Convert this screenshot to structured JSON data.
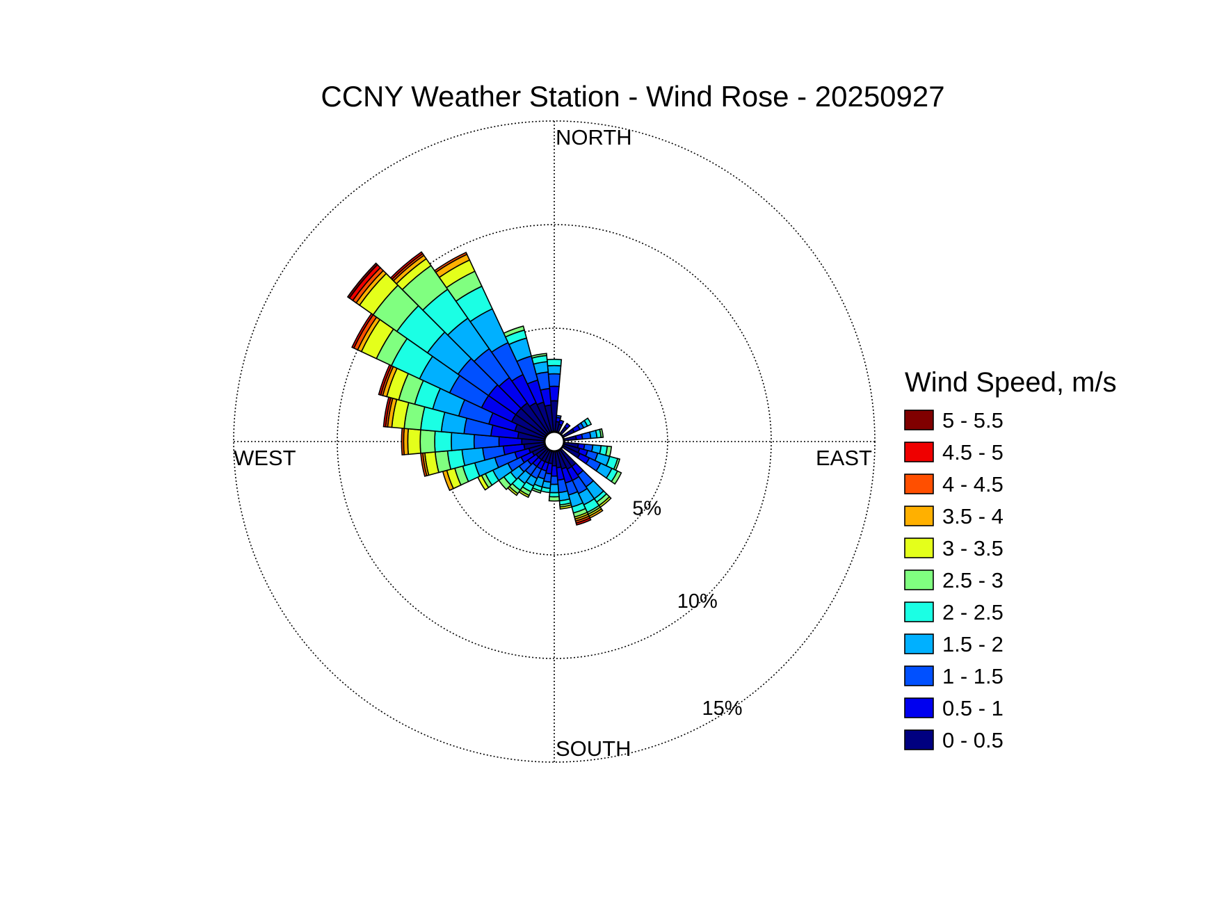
{
  "chart_data": {
    "type": "wind_rose",
    "title": "CCNY Weather Station - Wind Rose - 20250927",
    "direction_labels": {
      "north": "NORTH",
      "east": "EAST",
      "south": "SOUTH",
      "west": "WEST"
    },
    "radial_unit": "%",
    "radial_max": 15,
    "radial_rings": [
      {
        "value": 5,
        "label": "5%"
      },
      {
        "value": 10,
        "label": "10%"
      },
      {
        "value": 15,
        "label": "15%"
      }
    ],
    "grid": true,
    "legend": {
      "title": "Wind Speed, m/s",
      "placement": "right",
      "bins": [
        {
          "label": "5 - 5.5",
          "color": "#800000"
        },
        {
          "label": "4.5 - 5",
          "color": "#ef0000"
        },
        {
          "label": "4 - 4.5",
          "color": "#ff4f00"
        },
        {
          "label": "3.5 - 4",
          "color": "#ffb000"
        },
        {
          "label": "3 - 3.5",
          "color": "#e4ff1b"
        },
        {
          "label": "2.5 - 3",
          "color": "#80ff80"
        },
        {
          "label": "2 - 2.5",
          "color": "#1bffe4"
        },
        {
          "label": "1.5 - 2",
          "color": "#00b0ff"
        },
        {
          "label": "1 - 1.5",
          "color": "#0050ff"
        },
        {
          "label": "0.5 - 1",
          "color": "#0000ef"
        },
        {
          "label": "0 - 0.5",
          "color": "#000080"
        }
      ]
    },
    "sector_width_deg": 10,
    "series_note": "each sector: direction in degrees (from north, clockwise) and cumulative frequency % at the outer edge of each speed bin, innermost bin first (0-0.5, 0.5-1, 1-1.5, 1.5-2, 2-2.5, 2.5-3, 3-3.5, 3.5-4, 4-4.5, 4.5-5, 5-5.5)",
    "sectors": [
      {
        "direction": 0,
        "cumulative": [
          1.5,
          2.2,
          2.8,
          3.2,
          3.5
        ]
      },
      {
        "direction": 10,
        "cumulative": [
          0.5,
          0.7,
          0.8
        ]
      },
      {
        "direction": 20,
        "cumulative": [
          0.4,
          0.6
        ]
      },
      {
        "direction": 40,
        "cumulative": [
          0.4,
          0.6
        ]
      },
      {
        "direction": 60,
        "cumulative": [
          0.6,
          0.9,
          1.1,
          1.3,
          1.5
        ]
      },
      {
        "direction": 80,
        "cumulative": [
          0.6,
          0.9,
          1.3,
          1.6,
          1.8,
          1.9
        ]
      },
      {
        "direction": 100,
        "cumulative": [
          0.7,
          1.0,
          1.4,
          1.8,
          2.1,
          2.3
        ]
      },
      {
        "direction": 110,
        "cumulative": [
          0.8,
          1.2,
          1.7,
          2.3,
          2.7,
          2.8
        ]
      },
      {
        "direction": 120,
        "cumulative": [
          0.9,
          1.4,
          2.0,
          2.6,
          2.9,
          3.1
        ]
      },
      {
        "direction": 140,
        "cumulative": [
          1.0,
          1.5,
          2.2,
          2.9,
          3.1,
          3.3,
          3.4
        ]
      },
      {
        "direction": 150,
        "cumulative": [
          1.0,
          1.6,
          2.3,
          2.9,
          3.3,
          3.4,
          3.5,
          3.6
        ]
      },
      {
        "direction": 160,
        "cumulative": [
          0.9,
          1.6,
          2.2,
          2.8,
          3.1,
          3.3,
          3.4,
          3.5,
          3.6,
          3.7
        ]
      },
      {
        "direction": 170,
        "cumulative": [
          0.8,
          1.4,
          2.0,
          2.4,
          2.6,
          2.7,
          2.8
        ]
      },
      {
        "direction": 180,
        "cumulative": [
          0.7,
          1.2,
          1.6,
          2.0,
          2.2,
          2.4
        ]
      },
      {
        "direction": 190,
        "cumulative": [
          0.6,
          1.1,
          1.5,
          1.8,
          2.0
        ]
      },
      {
        "direction": 200,
        "cumulative": [
          0.6,
          1.0,
          1.4,
          1.8,
          2.0,
          2.1
        ]
      },
      {
        "direction": 210,
        "cumulative": [
          0.6,
          1.0,
          1.5,
          1.9,
          2.2,
          2.4,
          2.5
        ]
      },
      {
        "direction": 220,
        "cumulative": [
          0.6,
          1.0,
          1.5,
          2.0,
          2.4,
          2.6,
          2.7
        ]
      },
      {
        "direction": 230,
        "cumulative": [
          0.6,
          1.1,
          1.6,
          2.1,
          2.5,
          2.8
        ]
      },
      {
        "direction": 240,
        "cumulative": [
          0.7,
          1.3,
          2.0,
          2.8,
          3.2,
          3.4,
          3.6
        ]
      },
      {
        "direction": 250,
        "cumulative": [
          0.8,
          1.5,
          2.5,
          3.5,
          4.1,
          4.5,
          4.9,
          5.1
        ]
      },
      {
        "direction": 260,
        "cumulative": [
          1.0,
          2.0,
          3.0,
          4.0,
          4.7,
          5.3,
          5.8,
          5.9,
          6.0
        ]
      },
      {
        "direction": 270,
        "cumulative": [
          1.1,
          2.2,
          3.4,
          4.5,
          5.3,
          6.0,
          6.6,
          6.8,
          6.9
        ]
      },
      {
        "direction": 280,
        "cumulative": [
          1.3,
          2.6,
          3.9,
          5.0,
          6.0,
          6.8,
          7.4,
          7.6,
          7.7,
          7.8
        ]
      },
      {
        "direction": 290,
        "cumulative": [
          1.5,
          2.8,
          4.3,
          5.6,
          6.5,
          7.3,
          7.9,
          8.1,
          8.2,
          8.3
        ]
      },
      {
        "direction": 300,
        "cumulative": [
          1.8,
          3.4,
          5.1,
          6.7,
          8.2,
          9.0,
          9.8,
          10.0,
          10.2,
          10.3
        ]
      },
      {
        "direction": 310,
        "cumulative": [
          1.8,
          3.4,
          5.2,
          7.0,
          8.8,
          10.2,
          11.0,
          11.2,
          11.4,
          11.6,
          11.7
        ]
      },
      {
        "direction": 320,
        "cumulative": [
          1.8,
          3.3,
          5.0,
          6.8,
          8.5,
          9.9,
          10.3,
          10.5,
          10.6,
          10.7
        ]
      },
      {
        "direction": 330,
        "cumulative": [
          1.6,
          3.1,
          4.8,
          6.6,
          7.8,
          8.6,
          9.2,
          9.5,
          9.6
        ]
      },
      {
        "direction": 340,
        "cumulative": [
          1.5,
          2.6,
          3.8,
          4.7,
          5.1,
          5.3
        ]
      },
      {
        "direction": 350,
        "cumulative": [
          1.3,
          2.1,
          2.9,
          3.4,
          3.7,
          3.8
        ]
      }
    ]
  }
}
